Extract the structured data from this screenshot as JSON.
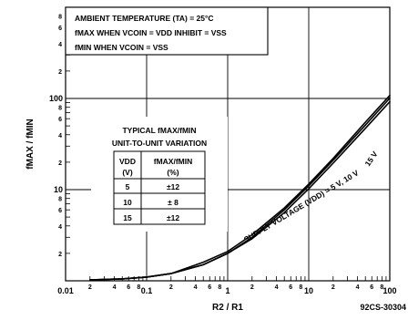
{
  "chart_data": {
    "type": "line",
    "title": "",
    "xlabel": "R2 / R1",
    "ylabel": "fMAX / fMIN",
    "x_scale": "log",
    "y_scale": "log",
    "xlim": [
      0.01,
      100
    ],
    "ylim": [
      1,
      1000
    ],
    "x_major_ticks": [
      {
        "value": 0.01,
        "label": "0.01"
      },
      {
        "value": 0.1,
        "label": "0.1"
      },
      {
        "value": 1,
        "label": "1"
      },
      {
        "value": 10,
        "label": "10"
      },
      {
        "value": 100,
        "label": "100"
      }
    ],
    "x_minor_labels": [
      "2",
      "4",
      "6",
      "8"
    ],
    "y_major_ticks": [
      {
        "value": 10,
        "label": "10"
      },
      {
        "value": 100,
        "label": "100"
      }
    ],
    "y_minor_labels": [
      "2",
      "4",
      "6",
      "8"
    ],
    "grid": "major decades",
    "series": [
      {
        "name": "5 V",
        "x": [
          0.02,
          0.05,
          0.1,
          0.2,
          0.5,
          1,
          2,
          5,
          10,
          20,
          50,
          100
        ],
        "y": [
          1.02,
          1.05,
          1.1,
          1.2,
          1.5,
          2,
          3,
          6,
          11,
          21,
          51,
          101
        ]
      },
      {
        "name": "10 V",
        "x": [
          0.02,
          0.05,
          0.1,
          0.2,
          0.5,
          1,
          2,
          5,
          10,
          20,
          50,
          100
        ],
        "y": [
          1.02,
          1.05,
          1.1,
          1.2,
          1.6,
          2.1,
          3.2,
          6.3,
          11.5,
          22,
          55,
          108
        ]
      },
      {
        "name": "15 V",
        "x": [
          0.02,
          0.05,
          0.1,
          0.2,
          0.5,
          1,
          2,
          5,
          10,
          20,
          50,
          100
        ],
        "y": [
          1.02,
          1.05,
          1.1,
          1.2,
          1.5,
          2,
          2.9,
          5.6,
          10.2,
          19.5,
          47,
          92
        ]
      }
    ],
    "curve_label": "SUPPLY VOLTAGE (VDD) = 5 V, 10 V",
    "curve_label_2": "15 V",
    "notes": {
      "line1": "AMBIENT TEMPERATURE (TA) = 25°C",
      "line2": "fMAX WHEN VCOIN = VDD INHIBIT = VSS",
      "line3": "fMIN WHEN VCOIN = VSS"
    },
    "variation_table": {
      "title_line1": "TYPICAL fMAX/fMIN",
      "title_line2": "UNIT-TO-UNIT VARIATION",
      "header_col1_line1": "VDD",
      "header_col1_line2": "(V)",
      "header_col2_line1": "fMAX/fMIN",
      "header_col2_line2": "(%)",
      "rows": [
        {
          "vdd": "5",
          "variation": "±12"
        },
        {
          "vdd": "10",
          "variation": "± 8"
        },
        {
          "vdd": "15",
          "variation": "±12"
        }
      ]
    },
    "figure_code": "92CS-30304"
  }
}
